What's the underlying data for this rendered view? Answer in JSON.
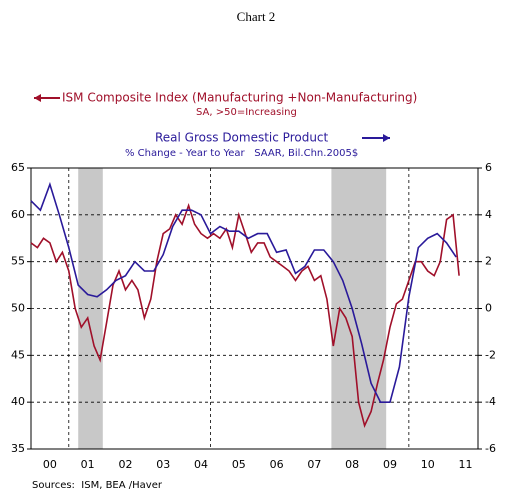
{
  "chart_data": {
    "type": "line",
    "title": "Chart 2",
    "annotations": [
      "SA, >50=Increasing",
      "% Change - Year to Year   SAAR, Bil.Chn.2005$"
    ],
    "source": "Sources:  ISM, BEA /Haver",
    "xlim": [
      2000,
      2011.83
    ],
    "xticks": [
      {
        "value": 2000.5,
        "label": "00"
      },
      {
        "value": 2001.5,
        "label": "01"
      },
      {
        "value": 2002.5,
        "label": "02"
      },
      {
        "value": 2003.5,
        "label": "03"
      },
      {
        "value": 2004.5,
        "label": "04"
      },
      {
        "value": 2005.5,
        "label": "05"
      },
      {
        "value": 2006.5,
        "label": "06"
      },
      {
        "value": 2007.5,
        "label": "07"
      },
      {
        "value": 2008.5,
        "label": "08"
      },
      {
        "value": 2009.5,
        "label": "09"
      },
      {
        "value": 2010.5,
        "label": "10"
      },
      {
        "value": 2011.5,
        "label": "11"
      }
    ],
    "xgrid": [
      2001,
      2004.75,
      2010
    ],
    "shaded_regions": [
      [
        2001.25,
        2001.9
      ],
      [
        2007.95,
        2009.4
      ]
    ],
    "ylim": [
      35,
      65
    ],
    "yticks": [
      35,
      40,
      45,
      50,
      55,
      60,
      65
    ],
    "y2lim": [
      -6,
      6
    ],
    "y2ticks": [
      -6,
      -4,
      -2,
      0,
      2,
      4,
      6
    ],
    "grid": true,
    "series": [
      {
        "name": "ISM Composite Index (Manufacturing +Non-Manufacturing)",
        "color": "#a0102a",
        "x": [
          2000,
          2000.17,
          2000.33,
          2000.5,
          2000.67,
          2000.83,
          2001,
          2001.17,
          2001.33,
          2001.5,
          2001.67,
          2001.83,
          2002,
          2002.17,
          2002.33,
          2002.5,
          2002.67,
          2002.83,
          2003,
          2003.17,
          2003.33,
          2003.5,
          2003.67,
          2003.83,
          2004,
          2004.17,
          2004.33,
          2004.5,
          2004.67,
          2004.83,
          2005,
          2005.17,
          2005.33,
          2005.5,
          2005.67,
          2005.83,
          2006,
          2006.17,
          2006.33,
          2006.5,
          2006.67,
          2006.83,
          2007,
          2007.17,
          2007.33,
          2007.5,
          2007.67,
          2007.83,
          2008,
          2008.17,
          2008.33,
          2008.5,
          2008.67,
          2008.83,
          2009,
          2009.17,
          2009.33,
          2009.5,
          2009.67,
          2009.83,
          2010,
          2010.17,
          2010.33,
          2010.5,
          2010.67,
          2010.83,
          2011,
          2011.17,
          2011.33
        ],
        "values": [
          57,
          56.5,
          57.5,
          57,
          55,
          56,
          54,
          50,
          48,
          49,
          46,
          44.5,
          48.5,
          52.5,
          54,
          52,
          53,
          52,
          49,
          51,
          55,
          58,
          58.5,
          60,
          59,
          61,
          59,
          58,
          57.5,
          58,
          57.5,
          58.5,
          56.5,
          60,
          58,
          56,
          57,
          57,
          55.5,
          55,
          54.5,
          54,
          53,
          54,
          54.5,
          53,
          53.5,
          51,
          46,
          50,
          49,
          47,
          40,
          37.5,
          39,
          42,
          44.5,
          48,
          50.5,
          51,
          53,
          55,
          55,
          54,
          53.5,
          55,
          59.5,
          60,
          53.5
        ]
      },
      {
        "name": "Real Gross Domestic Product",
        "color": "#2a1a9a",
        "axis": "y2",
        "x": [
          2000,
          2000.25,
          2000.5,
          2000.75,
          2001,
          2001.25,
          2001.5,
          2001.75,
          2002,
          2002.25,
          2002.5,
          2002.75,
          2003,
          2003.25,
          2003.5,
          2003.75,
          2004,
          2004.25,
          2004.5,
          2004.75,
          2005,
          2005.25,
          2005.5,
          2005.75,
          2006,
          2006.25,
          2006.5,
          2006.75,
          2007,
          2007.25,
          2007.5,
          2007.75,
          2008,
          2008.25,
          2008.5,
          2008.75,
          2009,
          2009.25,
          2009.5,
          2009.75,
          2010,
          2010.25,
          2010.5,
          2010.75,
          2011,
          2011.25
        ],
        "values": [
          4.6,
          4.2,
          5.3,
          4.0,
          2.6,
          1.0,
          0.6,
          0.5,
          0.8,
          1.2,
          1.4,
          2.0,
          1.6,
          1.6,
          2.3,
          3.5,
          4.2,
          4.2,
          4.0,
          3.2,
          3.5,
          3.3,
          3.3,
          3.0,
          3.2,
          3.2,
          2.4,
          2.5,
          1.5,
          1.8,
          2.5,
          2.5,
          2.0,
          1.2,
          0.0,
          -1.5,
          -3.2,
          -4.0,
          -4.0,
          -2.5,
          0.5,
          2.6,
          3.0,
          3.2,
          2.8,
          2.2
        ]
      }
    ]
  }
}
